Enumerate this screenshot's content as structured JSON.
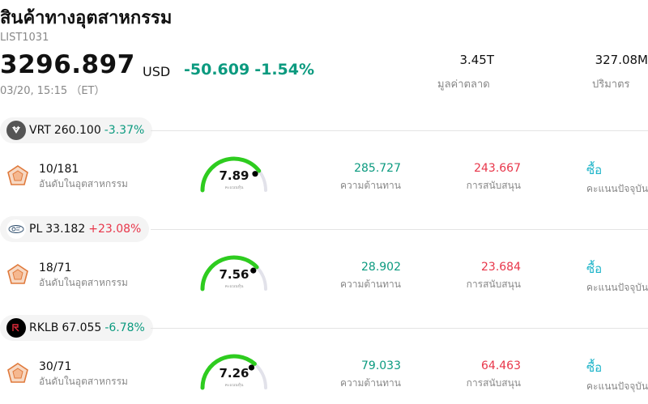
{
  "header": {
    "title": "สินค้าทางอุตสาหกรรม",
    "code": "LIST1031",
    "price": "3296.897",
    "currency": "USD",
    "change": "-50.609",
    "change_pct": "-1.54%",
    "timestamp": "03/20, 15:15 （ET）"
  },
  "stats": {
    "market_cap_value": "3.45T",
    "market_cap_label": "มูลค่าตลาด",
    "volume_value": "327.08M",
    "volume_label": "ปริมาตร"
  },
  "colors": {
    "down": "#0b9a7f",
    "up": "#e8364a",
    "rating": "#1ab3c8",
    "gauge": "#2ecc1f"
  },
  "stocks": [
    {
      "ticker": "VRT",
      "price": "260.100",
      "change_pct": "-3.37%",
      "direction": "down",
      "logo_icon": "vrt-logo-icon",
      "rank": "10/181",
      "rank_label": "อันดับในอุตสาหกรรม",
      "score": "7.89",
      "score_caption": "คะแนนหุ้น",
      "score_fraction": 0.789,
      "resistance": "285.727",
      "resistance_label": "ความต้านทาน",
      "support": "243.667",
      "support_label": "การสนับสนุน",
      "rating": "ซื้อ",
      "rating_label": "คะแนนปัจจุบัน"
    },
    {
      "ticker": "PL",
      "price": "33.182",
      "change_pct": "+23.08%",
      "direction": "up",
      "logo_icon": "planet-logo-icon",
      "rank": "18/71",
      "rank_label": "อันดับในอุตสาหกรรม",
      "score": "7.56",
      "score_caption": "คะแนนหุ้น",
      "score_fraction": 0.756,
      "resistance": "28.902",
      "resistance_label": "ความต้านทาน",
      "support": "23.684",
      "support_label": "การสนับสนุน",
      "rating": "ซื้อ",
      "rating_label": "คะแนนปัจจุบัน"
    },
    {
      "ticker": "RKLB",
      "price": "67.055",
      "change_pct": "-6.78%",
      "direction": "down",
      "logo_icon": "rocketlab-logo-icon",
      "rank": "30/71",
      "rank_label": "อันดับในอุตสาหกรรม",
      "score": "7.26",
      "score_caption": "คะแนนหุ้น",
      "score_fraction": 0.726,
      "resistance": "79.033",
      "resistance_label": "ความต้านทาน",
      "support": "64.463",
      "support_label": "การสนับสนุน",
      "rating": "ซื้อ",
      "rating_label": "คะแนนปัจจุบัน"
    }
  ]
}
